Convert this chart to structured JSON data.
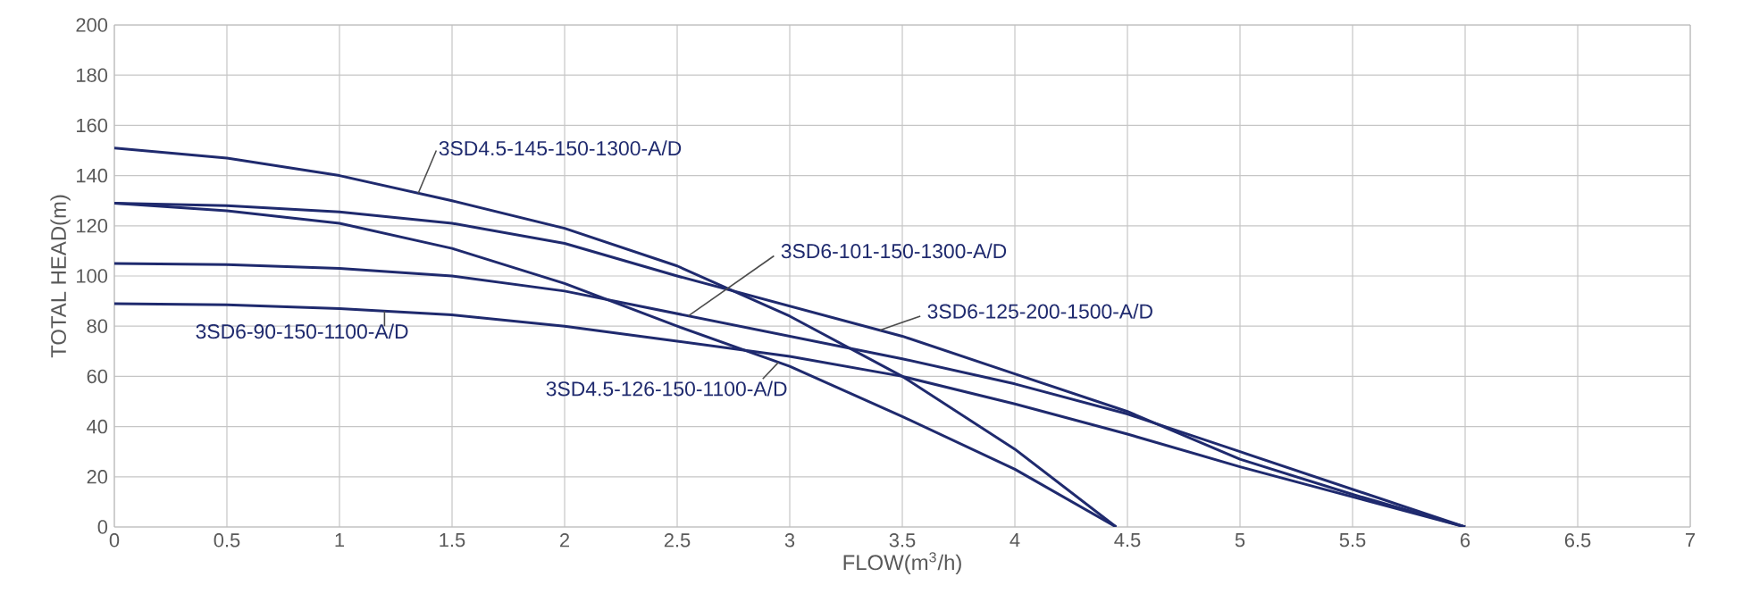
{
  "chart_data": {
    "type": "line",
    "xlabel": "FLOW(m$^{3}$/h)",
    "ylabel": "TOTAL HEAD(m)",
    "xlim": [
      0,
      7
    ],
    "ylim": [
      0,
      200
    ],
    "xticks": [
      0,
      0.5,
      1,
      1.5,
      2,
      2.5,
      3,
      3.5,
      4,
      4.5,
      5,
      5.5,
      6,
      6.5,
      7
    ],
    "yticks": [
      0,
      20,
      40,
      60,
      80,
      100,
      120,
      140,
      160,
      180,
      200
    ],
    "grid": true,
    "marker": "none",
    "line_style": "solid",
    "series": [
      {
        "name": "3SD4.5-145-150-1300-A/D",
        "color": "#1f2a6e",
        "x": [
          0,
          0.5,
          1,
          1.5,
          2,
          2.5,
          3,
          3.5,
          4,
          4.45
        ],
        "values": [
          151,
          147,
          140,
          130,
          119,
          104,
          84,
          60,
          31,
          0
        ]
      },
      {
        "name": "3SD4.5-126-150-1100-A/D",
        "color": "#1f2a6e",
        "x": [
          0,
          0.5,
          1,
          1.5,
          2,
          2.5,
          3,
          3.5,
          4,
          4.45
        ],
        "values": [
          129,
          126,
          121,
          111,
          97,
          80,
          64,
          44,
          23,
          0
        ]
      },
      {
        "name": "3SD6-101-150-1300-A/D",
        "color": "#1f2a6e",
        "x": [
          0,
          0.5,
          1,
          1.5,
          2,
          2.5,
          3,
          3.5,
          4,
          4.5,
          5,
          5.5,
          6
        ],
        "values": [
          105,
          104.5,
          103,
          100,
          94,
          85,
          76,
          67,
          57,
          45,
          30,
          15,
          0
        ]
      },
      {
        "name": "3SD6-125-200-1500-A/D",
        "color": "#1f2a6e",
        "x": [
          0,
          0.5,
          1,
          1.5,
          2,
          2.5,
          3,
          3.5,
          4,
          4.5,
          5,
          5.5,
          6
        ],
        "values": [
          129,
          128,
          125.5,
          121,
          113,
          100,
          88,
          76,
          61,
          46,
          27,
          13,
          0
        ]
      },
      {
        "name": "3SD6-90-150-1100-A/D",
        "color": "#1f2a6e",
        "x": [
          0,
          0.5,
          1,
          1.5,
          2,
          2.5,
          3,
          3.5,
          4,
          4.5,
          5,
          5.5,
          6
        ],
        "values": [
          89,
          88.5,
          87,
          84.5,
          80,
          74,
          68,
          60,
          49,
          37,
          24,
          12,
          0
        ]
      }
    ]
  }
}
